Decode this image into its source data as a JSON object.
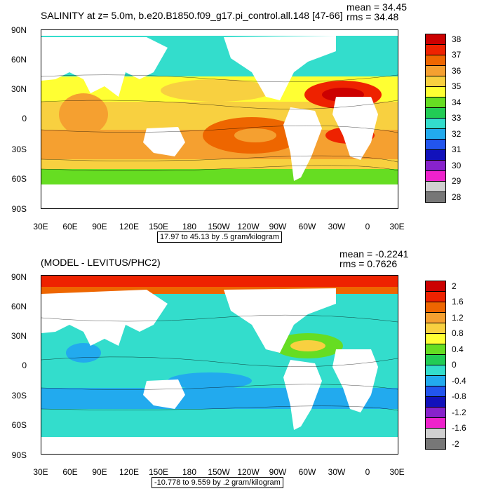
{
  "panel1": {
    "title": "SALINITY at z=   5.0m, b.e20.B1850.f09_g17.pi_control.all.148 [47-66]",
    "mean": "mean = 34.45",
    "rms": "rms = 34.48",
    "range_note": "17.97 to 45.13 by .5 gram/kilogram",
    "lat_labels": [
      "90N",
      "60N",
      "30N",
      "0",
      "30S",
      "60S",
      "90S"
    ],
    "lon_labels": [
      "30E",
      "60E",
      "90E",
      "120E",
      "150E",
      "180",
      "150W",
      "120W",
      "90W",
      "60W",
      "30W",
      "0",
      "30E"
    ],
    "colorbar": {
      "labels": [
        "38",
        "37",
        "36",
        "35",
        "34",
        "33",
        "32",
        "31",
        "30",
        "29",
        "28"
      ],
      "colors": [
        "#cc0000",
        "#ee2200",
        "#ee6600",
        "#f5a030",
        "#f8d040",
        "#ffff33",
        "#66dd22",
        "#22cc55",
        "#33ddcc",
        "#22aaee",
        "#2255ee",
        "#1111bb",
        "#8822cc",
        "#ee22cc",
        "#d0d0d0",
        "#777777"
      ]
    }
  },
  "panel2": {
    "title": "(MODEL - LEVITUS/PHC2)",
    "mean": "mean = -0.2241",
    "rms": "rms = 0.7626",
    "range_note": "-10.778 to 9.559 by .2 gram/kilogram",
    "lat_labels": [
      "90N",
      "60N",
      "30N",
      "0",
      "30S",
      "60S",
      "90S"
    ],
    "lon_labels": [
      "30E",
      "60E",
      "90E",
      "120E",
      "150E",
      "180",
      "150W",
      "120W",
      "90W",
      "60W",
      "30W",
      "0",
      "30E"
    ],
    "colorbar": {
      "labels": [
        "2",
        "1.6",
        "1.2",
        "0.8",
        "0.4",
        "0",
        "-0.4",
        "-0.8",
        "-1.2",
        "-1.6",
        "-2"
      ],
      "colors": [
        "#cc0000",
        "#ee2200",
        "#ee6600",
        "#f5a030",
        "#f8d040",
        "#ffff33",
        "#66dd22",
        "#22cc55",
        "#33ddcc",
        "#22aaee",
        "#2255ee",
        "#1111bb",
        "#8822cc",
        "#ee22cc",
        "#d0d0d0",
        "#777777"
      ]
    }
  }
}
